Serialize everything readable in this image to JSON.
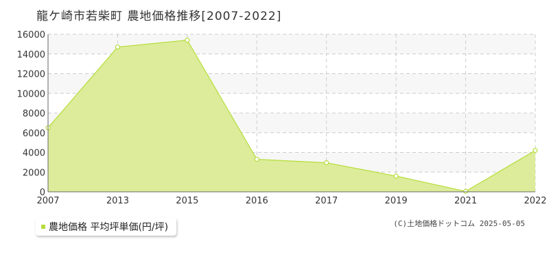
{
  "chart_data": {
    "type": "area",
    "title": "龍ケ崎市若柴町 農地価格推移[2007-2022]",
    "x": [
      "2007",
      "2013",
      "2015",
      "2016",
      "2017",
      "2019",
      "2021",
      "2022"
    ],
    "series": [
      {
        "name": "農地価格 平均坪単価(円/坪)",
        "values": [
          6500,
          14700,
          15400,
          3300,
          2950,
          1600,
          50,
          4200
        ]
      }
    ],
    "ylim": [
      0,
      16000
    ],
    "yticks": [
      0,
      2000,
      4000,
      6000,
      8000,
      10000,
      12000,
      14000,
      16000
    ],
    "grid": true,
    "legend_position": "bottom-left",
    "colors": {
      "fill": "#dcec9a",
      "line": "#b5dd3a",
      "grid": "#cccccc",
      "band": "#f7f7f7"
    }
  },
  "credit": "(C)土地価格ドットコム 2025-05-05"
}
